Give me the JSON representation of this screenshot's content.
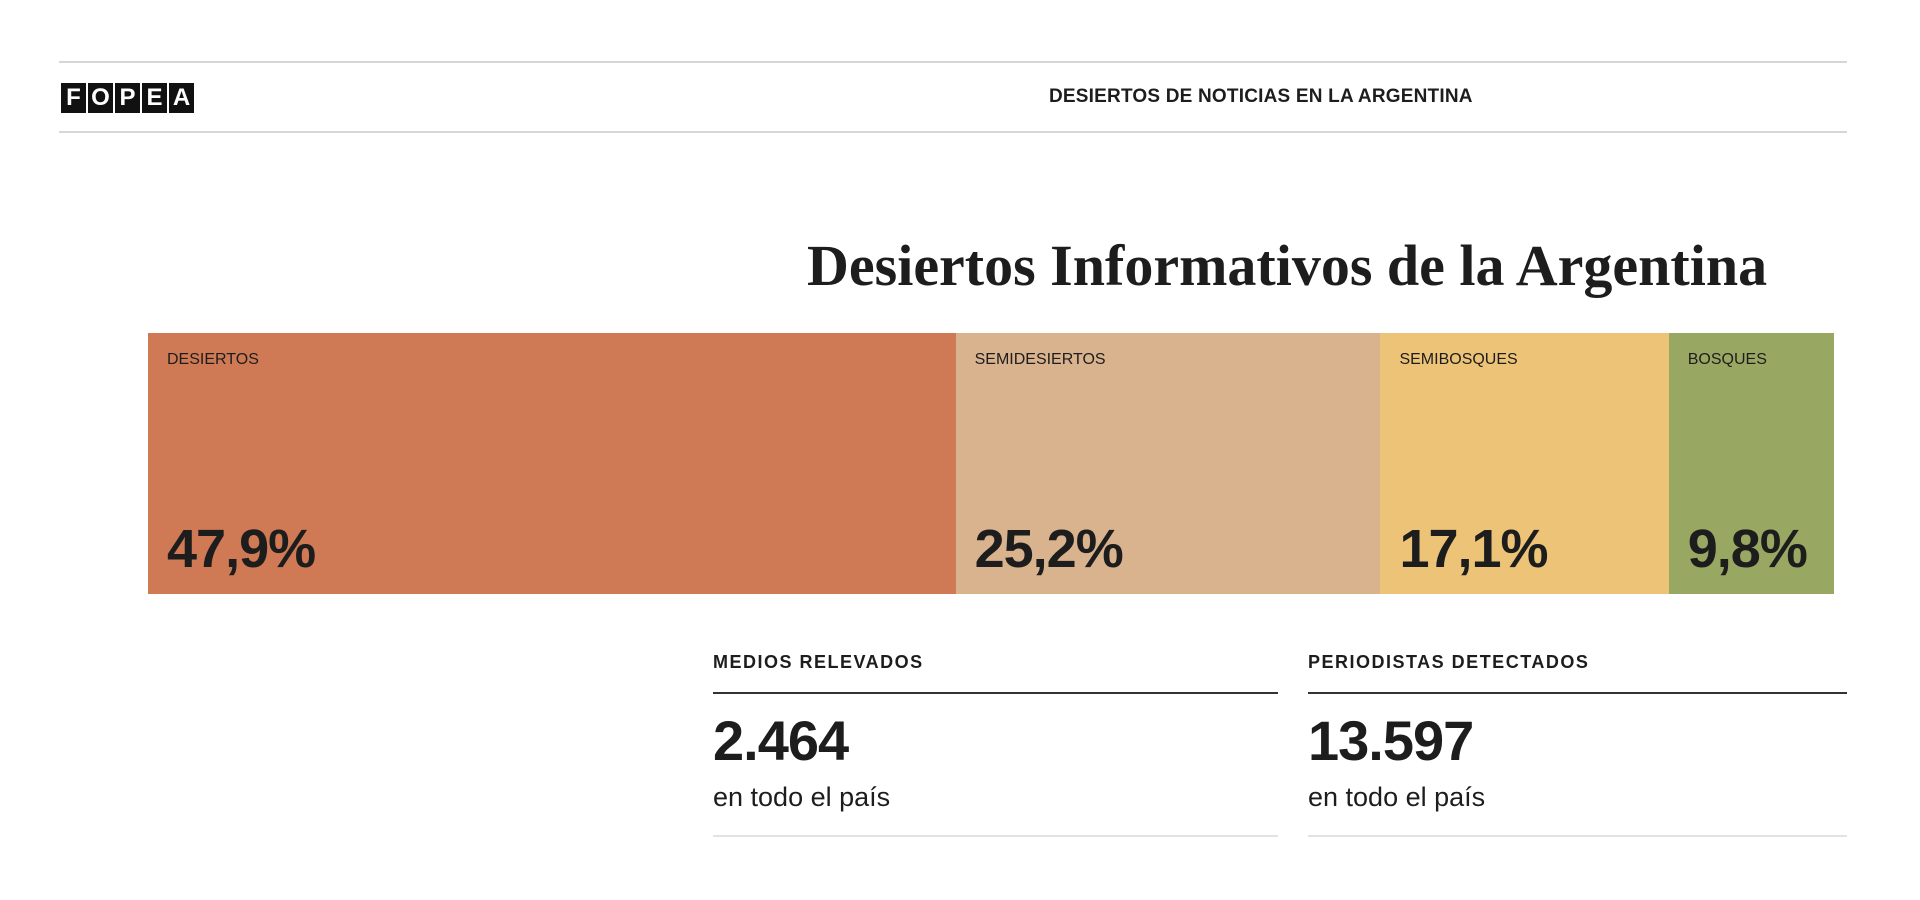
{
  "header": {
    "logo_letters": [
      "F",
      "O",
      "P",
      "E",
      "A"
    ],
    "title": "DESIERTOS DE NOTICIAS EN LA ARGENTINA"
  },
  "main": {
    "title": "Desiertos Informativos de la Argentina",
    "segments": [
      {
        "label": "DESIERTOS",
        "value_text": "47,9%",
        "value": 47.9,
        "color": "#cf7a55"
      },
      {
        "label": "SEMIDESIERTOS",
        "value_text": "25,2%",
        "value": 25.2,
        "color": "#d9b28e"
      },
      {
        "label": "SEMIBOSQUES",
        "value_text": "17,1%",
        "value": 17.1,
        "color": "#edc377"
      },
      {
        "label": "BOSQUES",
        "value_text": "9,8%",
        "value": 9.8,
        "color": "#98a862"
      }
    ],
    "stats": [
      {
        "label": "MEDIOS RELEVADOS",
        "number": "2.464",
        "sub": "en todo el país"
      },
      {
        "label": "PERIODISTAS DETECTADOS",
        "number": "13.597",
        "sub": "en todo el país"
      }
    ]
  }
}
